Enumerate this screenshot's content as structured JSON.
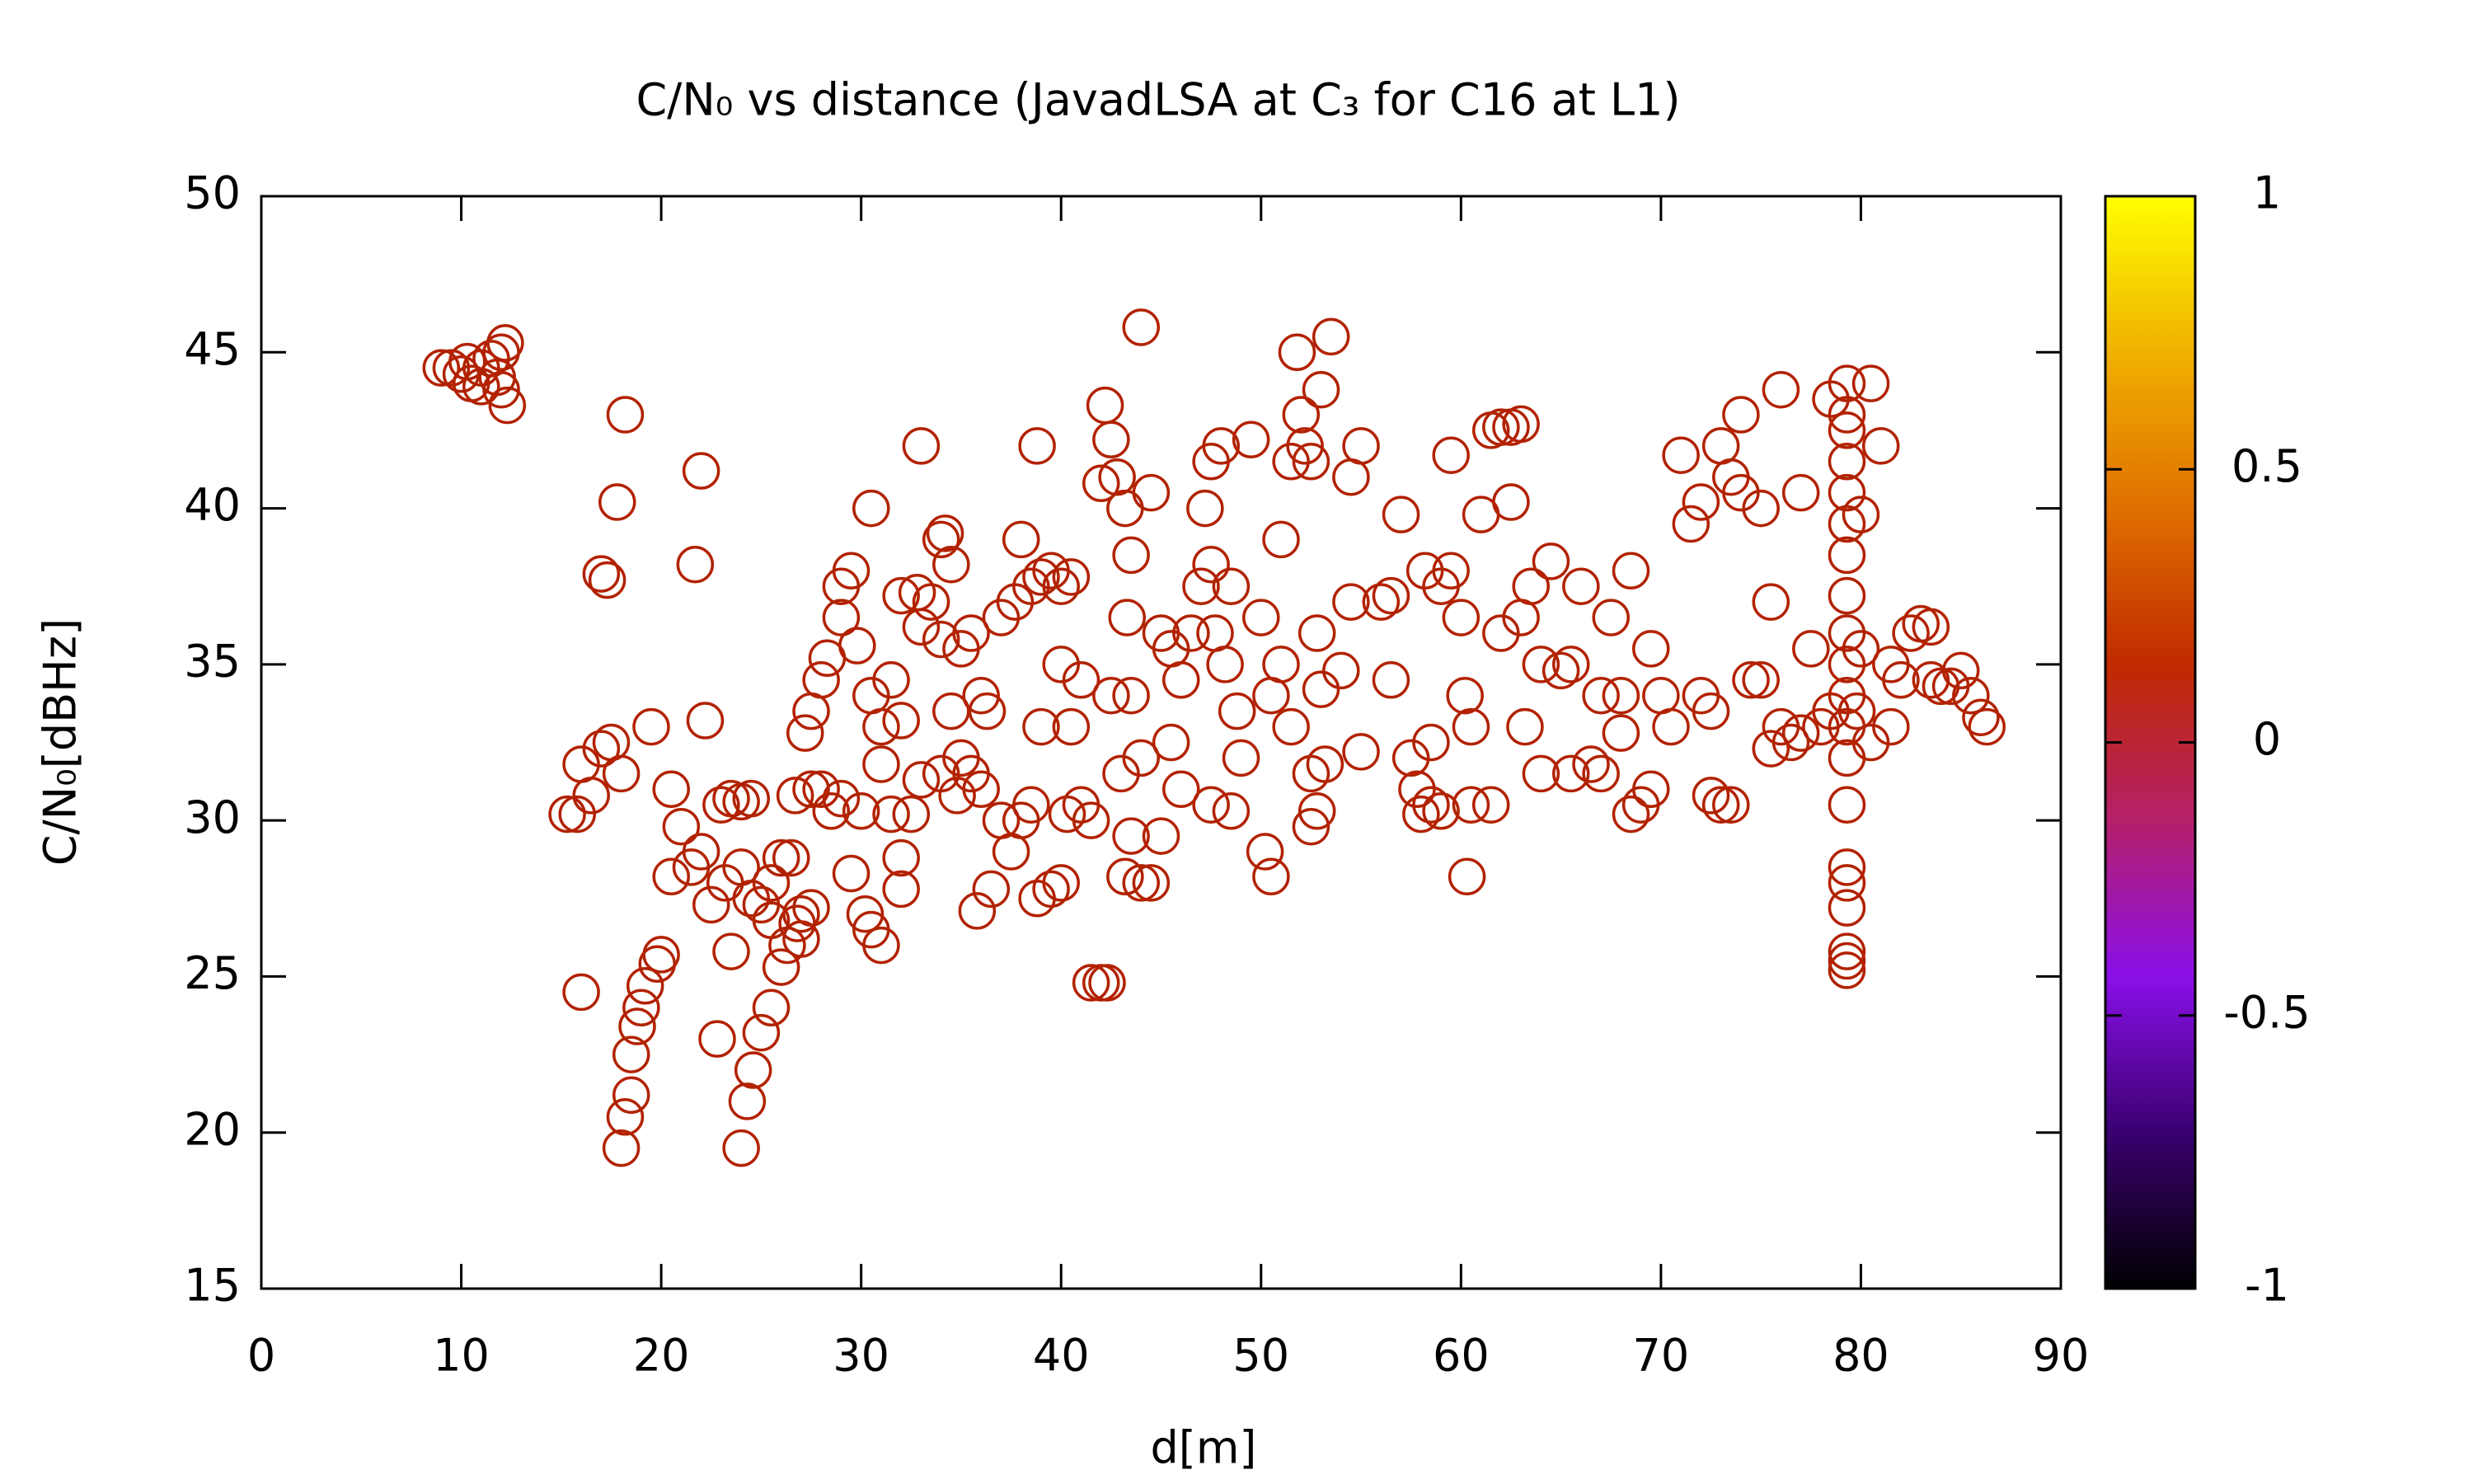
{
  "chart_data": {
    "type": "scatter",
    "title": "C/N₀ vs distance (JavadLSA at C₃ for C16 at L1)",
    "x_label": "d[m]",
    "y_label": "C/N₀[dBHz]",
    "color": "#b22200",
    "palette": [
      "#000000",
      "#3a0070",
      "#8a10e8",
      "#b5206a",
      "#c02a00",
      "#e07000",
      "#f0b000",
      "#ffff00"
    ],
    "cblim": [
      -1,
      1
    ],
    "cbticks": [
      -1,
      -0.5,
      0,
      0.5,
      1
    ],
    "xlim": [
      0,
      90
    ],
    "xticks": [
      0,
      10,
      20,
      30,
      40,
      50,
      60,
      70,
      80,
      90
    ],
    "ylim": [
      15,
      50
    ],
    "yticks": [
      15,
      20,
      25,
      30,
      35,
      40,
      45,
      50
    ],
    "x": [
      9,
      9.5,
      10,
      10.5,
      11,
      11.5,
      12,
      12.2,
      12.3,
      12,
      11,
      10.3,
      11.8,
      18.2,
      22,
      17.8,
      17,
      17.3,
      21.7,
      22.2,
      19.5,
      17.5,
      17,
      18,
      16,
      15.3,
      15.8,
      16.5,
      20.5,
      21,
      20.5,
      21.5,
      22,
      22.5,
      23,
      23.5,
      24,
      24.5,
      23.2,
      24,
      24.5,
      25,
      25.5,
      26,
      26.5,
      25.5,
      27,
      27,
      26.8,
      27.5,
      23.5,
      16,
      20,
      19.8,
      19.2,
      19,
      18.8,
      18.5,
      18.5,
      18.2,
      18,
      22.8,
      24,
      24.3,
      24.6,
      25,
      25.5,
      26,
      26.3,
      26.7,
      27.2,
      27.5,
      28,
      28.3,
      29,
      29,
      29.5,
      30.5,
      29.8,
      30.5,
      31,
      31,
      30,
      29,
      28.5,
      28,
      27.5,
      29.5,
      30.2,
      30.5,
      31,
      32,
      32,
      31.5,
      32.5,
      33,
      32,
      31.5,
      32,
      32.8,
      33,
      33.5,
      34,
      34.2,
      34.5,
      33,
      34,
      35,
      35.5,
      34.5,
      34,
      34.8,
      35,
      35.5,
      36,
      36.3,
      36,
      35.8,
      36.5,
      37,
      37.5,
      38,
      38.5,
      37,
      37.7,
      38,
      38.5,
      39,
      38.8,
      39.5,
      40,
      40.5,
      39,
      38.8,
      39.5,
      40,
      40.3,
      41,
      41.5,
      40,
      40.5,
      41,
      41.5,
      42,
      42.3,
      42.5,
      42.2,
      42.5,
      42,
      42.8,
      43.2,
      43.5,
      44,
      43.3,
      44.5,
      43.5,
      44,
      43,
      43.5,
      43.2,
      44,
      44.5,
      45,
      45.5,
      46,
      45.5,
      46,
      45,
      46.5,
      47,
      47.5,
      47.2,
      47.5,
      48,
      47.7,
      48.5,
      48.2,
      48.8,
      49,
      48.5,
      47.5,
      49.5,
      50,
      50.5,
      50.2,
      50.5,
      51,
      51,
      51.5,
      51.8,
      52,
      52.2,
      51.5,
      52.5,
      53,
      53.5,
      52.8,
      53,
      52.5,
      52.5,
      52.8,
      53.2,
      54,
      54.5,
      55,
      54.5,
      55,
      56,
      56.5,
      57,
      56.5,
      57.5,
      57.8,
      58,
      58.5,
      59,
      58.5,
      58.2,
      59,
      59.5,
      59.5,
      60,
      60.2,
      60.5,
      60.3,
      60.5,
      61.5,
      61,
      61.5,
      62,
      62.5,
      63,
      62.5,
      62,
      63,
      63.5,
      63.2,
      64,
      64,
      65,
      65.5,
      64.5,
      66,
      65.5,
      66.5,
      67,
      67,
      68,
      67.5,
      68.5,
      68,
      68.5,
      69,
      69.5,
      69.5,
      70,
      70.5,
      71,
      71.5,
      72,
      72,
      72.5,
      72.5,
      73,
      73.5,
      73,
      73.5,
      74,
      74,
      74.5,
      75,
      75,
      75.5,
      75.5,
      76,
      76.5,
      76,
      77,
      77,
      77.5,
      78,
      78.5,
      78.5,
      79.3,
      79.3,
      79.3,
      79.3,
      79.3,
      79.3,
      79.3,
      79.3,
      79.3,
      79.3,
      79.3,
      79.3,
      79.3,
      79.3,
      79.3,
      79.3,
      79.3,
      79.3,
      79.3,
      79.3,
      80,
      80.5,
      80.5,
      81,
      81.5,
      81.5,
      82,
      82.5,
      83,
      83.5,
      83.5,
      84,
      84.5,
      85,
      85.5,
      86,
      86.3,
      80,
      79.8
    ],
    "values": [
      44.5,
      44.5,
      44.3,
      44,
      44.5,
      44.8,
      45,
      45.3,
      43.3,
      43.8,
      43.9,
      44.7,
      44.2,
      43,
      41.2,
      40.2,
      37.9,
      37.7,
      38.2,
      33.2,
      33,
      32.5,
      32.3,
      31.5,
      31.8,
      30.2,
      30.2,
      30.8,
      31,
      29.8,
      28.2,
      28.5,
      29,
      27.3,
      30.5,
      30.7,
      30.6,
      30.7,
      28,
      28.5,
      27.5,
      27.3,
      28,
      28.8,
      28.8,
      26.8,
      27,
      26.2,
      26.7,
      27.2,
      25.8,
      24.5,
      25.7,
      25.4,
      24.7,
      24,
      23.4,
      22.5,
      21.2,
      20.5,
      19.5,
      23,
      19.5,
      21,
      22,
      23.2,
      24,
      25.3,
      26,
      30.8,
      32.8,
      33.5,
      34.5,
      35.2,
      36.5,
      37.5,
      38,
      40,
      35.6,
      34,
      33,
      31.8,
      30.3,
      30.7,
      30.3,
      31,
      31,
      28.3,
      27,
      26.5,
      26,
      27.8,
      28.8,
      30.2,
      30.2,
      31.3,
      33.2,
      34.5,
      37.2,
      37.3,
      36.2,
      37,
      39,
      39.2,
      38.2,
      42,
      35.8,
      35.5,
      36,
      33.5,
      31.5,
      30.8,
      32,
      31.5,
      34,
      33.5,
      31,
      27.1,
      27.8,
      30,
      29,
      30,
      30.5,
      36.5,
      37,
      39,
      37.5,
      37.8,
      42,
      38,
      37.5,
      37.8,
      33,
      27.5,
      27.8,
      28,
      30.2,
      30.5,
      30,
      35,
      33,
      34.5,
      24.8,
      24.8,
      24.8,
      34,
      43.3,
      42.2,
      40.8,
      41,
      40,
      38.5,
      45.8,
      36.5,
      40.5,
      34,
      32,
      31.5,
      29.5,
      28.2,
      28,
      28,
      36,
      35.5,
      34.5,
      32.5,
      31,
      29.5,
      36,
      37.5,
      38.2,
      40,
      41.5,
      42,
      36,
      37.5,
      35,
      33.5,
      32,
      30.3,
      30.5,
      42.2,
      36.5,
      34,
      29,
      28.2,
      39,
      35,
      33,
      45,
      43,
      42,
      41.5,
      41.5,
      43.8,
      45.5,
      36,
      34.2,
      31.5,
      29.8,
      30.3,
      31.8,
      34.8,
      37,
      42,
      41,
      32.2,
      37,
      37.2,
      39.8,
      34.5,
      32,
      31,
      30.2,
      30.5,
      30.3,
      32.5,
      38,
      37.5,
      38,
      41.7,
      36.5,
      34,
      33,
      28.2,
      30.5,
      30.5,
      39.8,
      42.5,
      42.6,
      42.6,
      42.7,
      40.2,
      36,
      36.5,
      37.5,
      33,
      31.5,
      35,
      34.8,
      35,
      38.3,
      37.5,
      31.5,
      31.8,
      31.5,
      34,
      34,
      36.5,
      38,
      32.8,
      30.2,
      30.5,
      31,
      35.5,
      34,
      33,
      41.7,
      39.5,
      40.2,
      34,
      33.5,
      30.8,
      30.5,
      30.5,
      42,
      41,
      40.5,
      43,
      34.5,
      40,
      34.5,
      37,
      32.3,
      33,
      32.5,
      43.8,
      40.5,
      32.8,
      35.5,
      33,
      33.5,
      43.5,
      44,
      43,
      42.5,
      41.5,
      40.5,
      39.5,
      38.5,
      37.2,
      36,
      35,
      34,
      33,
      32,
      30.5,
      28.5,
      28,
      27.2,
      25.8,
      25.5,
      25.2,
      39.8,
      44,
      32.5,
      42,
      35,
      33,
      34.5,
      36,
      36.3,
      36.2,
      34.5,
      34.3,
      34.3,
      34.8,
      34,
      33.3,
      33,
      35.5,
      33.5
    ]
  }
}
